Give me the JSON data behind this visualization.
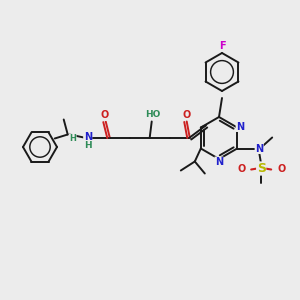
{
  "bg_color": "#ececec",
  "bond_color": "#1a1a1a",
  "colors": {
    "N": "#2020cc",
    "O": "#cc2020",
    "F": "#cc00cc",
    "S": "#b8b800",
    "H": "#2e8b57"
  },
  "figsize": [
    3.0,
    3.0
  ],
  "dpi": 100
}
